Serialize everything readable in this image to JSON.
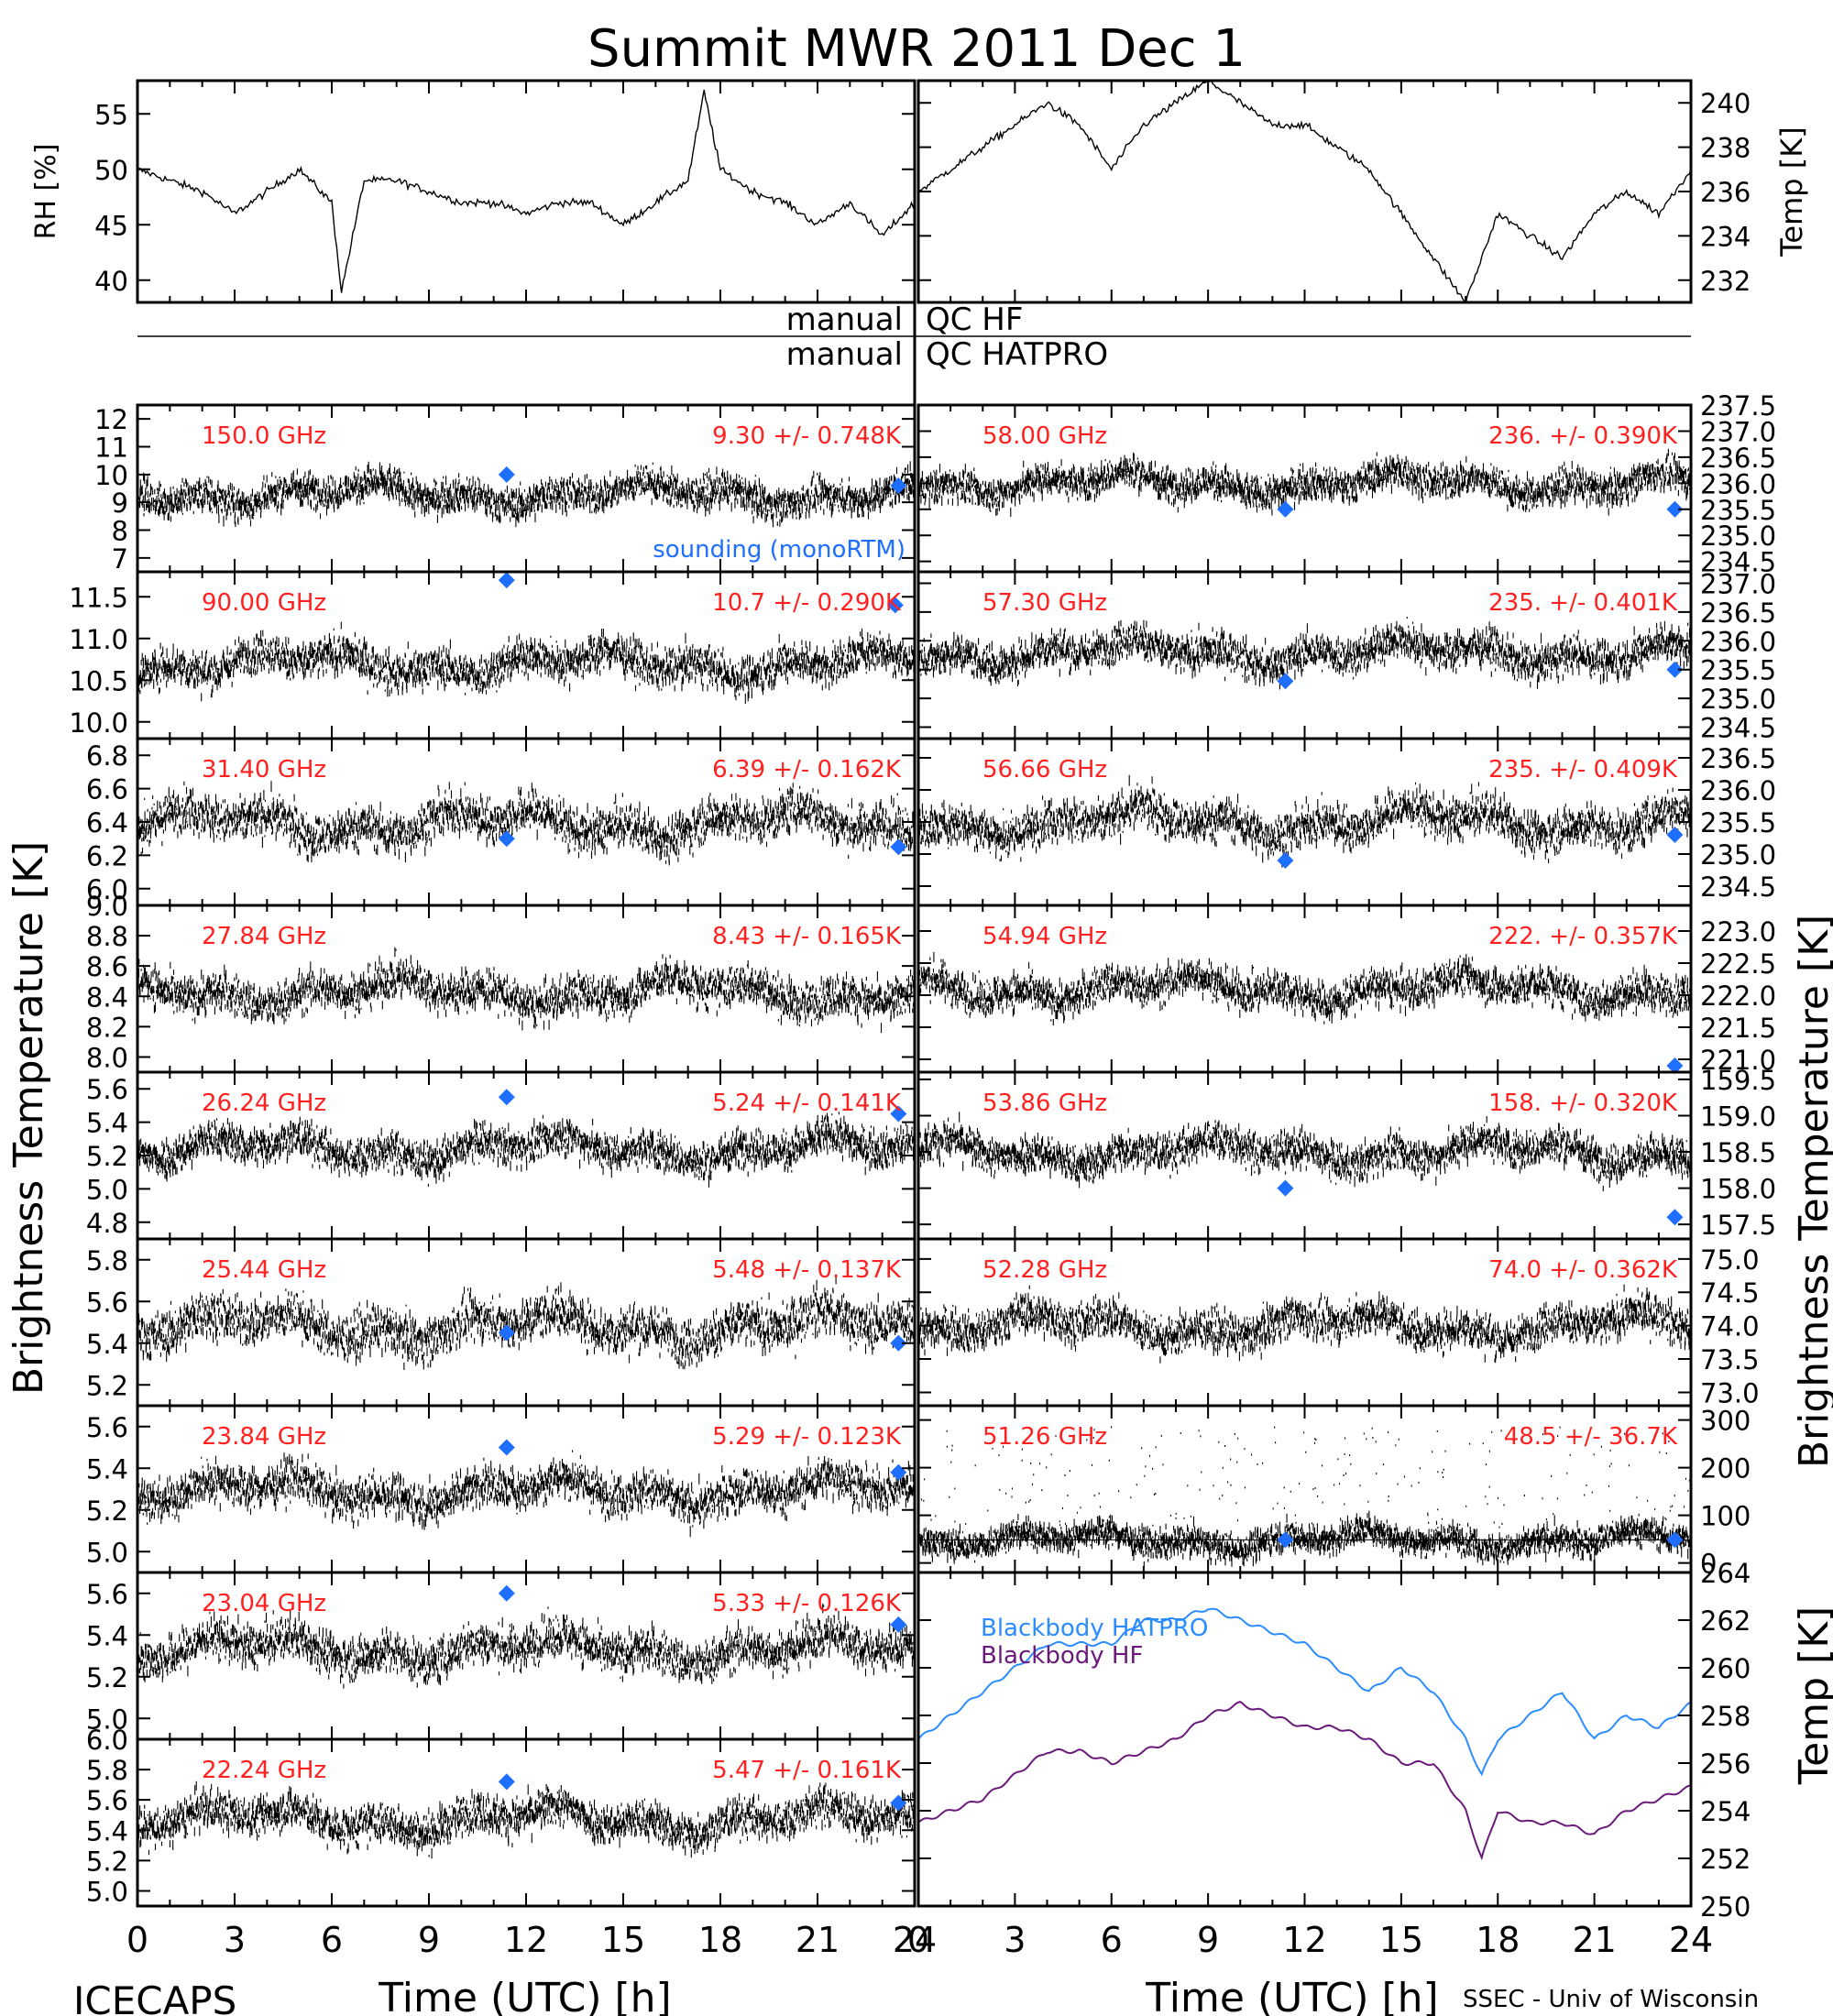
{
  "title": "Summit MWR 2011 Dec  1",
  "footer": {
    "left": "ICECAPS",
    "right": "SSEC - Univ of Wisconsin"
  },
  "qc": {
    "label_left": "manual",
    "label_hf": "QC HF",
    "label_hatpro": "QC HATPRO"
  },
  "axis": {
    "x_label": "Time (UTC) [h]",
    "x_ticks": [
      "0",
      "3",
      "6",
      "9",
      "12",
      "15",
      "18",
      "21",
      "24"
    ],
    "left_ylabel": "Brightness Temperature [K]",
    "right_ylabel": "Brightness Temperature [K]",
    "rh_ylabel": "RH [%]",
    "temp_ylabel": "Temp [K]"
  },
  "colors": {
    "trace": "#000000",
    "annotation": "#ff2020",
    "sounding": "#1e6eff",
    "bb_hatpro": "#2b8cff",
    "bb_hf": "#6a1a7a"
  },
  "chart_data": [
    {
      "type": "line",
      "id": "rh",
      "ylabel": "RH [%]",
      "xlim": [
        0,
        24
      ],
      "ylim": [
        38,
        58
      ],
      "yticks": [
        40,
        45,
        50,
        55
      ],
      "x": [
        0,
        1,
        2,
        3,
        4,
        5,
        6,
        6.3,
        7,
        8,
        9,
        10,
        11,
        12,
        13,
        14,
        15,
        16,
        17,
        17.5,
        18,
        19,
        20,
        21,
        22,
        23,
        24
      ],
      "values": [
        50,
        49,
        48,
        46,
        48,
        50,
        47,
        39,
        49,
        49,
        48,
        47,
        47,
        46,
        47,
        47,
        45,
        47,
        49,
        57,
        50,
        48,
        47,
        45,
        47,
        44,
        47
      ]
    },
    {
      "type": "line",
      "id": "temp",
      "ylabel": "Temp [K]",
      "xlim": [
        0,
        24
      ],
      "ylim": [
        231,
        241
      ],
      "yticks": [
        232,
        234,
        236,
        238,
        240
      ],
      "x": [
        0,
        1,
        2,
        3,
        4,
        5,
        6,
        7,
        8,
        9,
        10,
        11,
        12,
        13,
        14,
        15,
        16,
        17,
        18,
        19,
        20,
        21,
        22,
        23,
        24
      ],
      "values": [
        236,
        237,
        238,
        239,
        240,
        239,
        237,
        239,
        240,
        241,
        240,
        239,
        239,
        238,
        237,
        235,
        233,
        231,
        235,
        234,
        233,
        235,
        236,
        235,
        237
      ]
    },
    {
      "type": "scatter",
      "id": "ch150",
      "label": "150.0 GHz",
      "stat": "9.30 +/- 0.748K",
      "xlim": [
        0,
        24
      ],
      "ylim": [
        6.5,
        12.5
      ],
      "yticks": [
        7,
        8,
        9,
        10,
        11,
        12
      ],
      "mean": 9.3,
      "sd": 0.748,
      "sounding": [
        [
          11.4,
          10.0
        ],
        [
          23.5,
          9.6
        ]
      ],
      "sounding_label": "sounding (monoRTM)"
    },
    {
      "type": "scatter",
      "id": "ch90",
      "label": "90.00 GHz",
      "stat": "10.7 +/- 0.290K",
      "xlim": [
        0,
        24
      ],
      "ylim": [
        9.8,
        11.8
      ],
      "yticks": [
        10.0,
        10.5,
        11.0,
        11.5
      ],
      "mean": 10.7,
      "sd": 0.29,
      "sounding": [
        [
          11.4,
          11.7
        ],
        [
          23.4,
          11.4
        ]
      ]
    },
    {
      "type": "scatter",
      "id": "ch31",
      "label": "31.40 GHz",
      "stat": "6.39 +/- 0.162K",
      "xlim": [
        0,
        24
      ],
      "ylim": [
        5.9,
        6.9
      ],
      "yticks": [
        6.0,
        6.2,
        6.4,
        6.6,
        6.8
      ],
      "mean": 6.39,
      "sd": 0.162,
      "sounding": [
        [
          11.4,
          6.3
        ],
        [
          23.5,
          6.25
        ]
      ]
    },
    {
      "type": "scatter",
      "id": "ch27",
      "label": "27.84 GHz",
      "stat": "8.43 +/- 0.165K",
      "xlim": [
        0,
        24
      ],
      "ylim": [
        7.9,
        9.0
      ],
      "yticks": [
        8.0,
        8.2,
        8.4,
        8.6,
        8.8,
        9.0
      ],
      "mean": 8.43,
      "sd": 0.165,
      "sounding": []
    },
    {
      "type": "scatter",
      "id": "ch26",
      "label": "26.24 GHz",
      "stat": "5.24 +/- 0.141K",
      "xlim": [
        0,
        24
      ],
      "ylim": [
        4.7,
        5.7
      ],
      "yticks": [
        4.8,
        5.0,
        5.2,
        5.4,
        5.6
      ],
      "mean": 5.24,
      "sd": 0.141,
      "sounding": [
        [
          11.4,
          5.55
        ],
        [
          23.5,
          5.45
        ]
      ]
    },
    {
      "type": "scatter",
      "id": "ch25",
      "label": "25.44 GHz",
      "stat": "5.48 +/- 0.137K",
      "xlim": [
        0,
        24
      ],
      "ylim": [
        5.1,
        5.9
      ],
      "yticks": [
        5.2,
        5.4,
        5.6,
        5.8
      ],
      "mean": 5.48,
      "sd": 0.137,
      "sounding": [
        [
          11.4,
          5.45
        ],
        [
          23.5,
          5.4
        ]
      ]
    },
    {
      "type": "scatter",
      "id": "ch23",
      "label": "23.84 GHz",
      "stat": "5.29 +/- 0.123K",
      "xlim": [
        0,
        24
      ],
      "ylim": [
        4.9,
        5.7
      ],
      "yticks": [
        5.0,
        5.2,
        5.4,
        5.6
      ],
      "mean": 5.29,
      "sd": 0.123,
      "sounding": [
        [
          11.4,
          5.5
        ],
        [
          23.5,
          5.38
        ]
      ]
    },
    {
      "type": "scatter",
      "id": "ch23b",
      "label": "23.04 GHz",
      "stat": "5.33 +/- 0.126K",
      "xlim": [
        0,
        24
      ],
      "ylim": [
        4.9,
        5.7
      ],
      "yticks": [
        5.0,
        5.2,
        5.4,
        5.6
      ],
      "mean": 5.33,
      "sd": 0.126,
      "sounding": [
        [
          11.4,
          5.6
        ],
        [
          23.5,
          5.45
        ]
      ]
    },
    {
      "type": "scatter",
      "id": "ch22",
      "label": "22.24 GHz",
      "stat": "5.47 +/- 0.161K",
      "xlim": [
        0,
        24
      ],
      "ylim": [
        4.9,
        6.0
      ],
      "yticks": [
        5.0,
        5.2,
        5.4,
        5.6,
        5.8,
        6.0
      ],
      "mean": 5.47,
      "sd": 0.161,
      "sounding": [
        [
          11.4,
          5.72
        ],
        [
          23.5,
          5.58
        ]
      ]
    },
    {
      "type": "scatter",
      "id": "ch58",
      "label": "58.00 GHz",
      "stat": "236. +/- 0.390K",
      "xlim": [
        0,
        24
      ],
      "ylim": [
        234.3,
        237.5
      ],
      "yticks": [
        234.5,
        235.0,
        235.5,
        236.0,
        236.5,
        237.0,
        237.5
      ],
      "mean": 236.0,
      "sd": 0.39,
      "sounding": [
        [
          11.4,
          235.5
        ],
        [
          23.5,
          235.5
        ]
      ]
    },
    {
      "type": "scatter",
      "id": "ch57",
      "label": "57.30 GHz",
      "stat": "235. +/- 0.401K",
      "xlim": [
        0,
        24
      ],
      "ylim": [
        234.3,
        237.2
      ],
      "yticks": [
        234.5,
        235.0,
        235.5,
        236.0,
        236.5,
        237.0
      ],
      "mean": 235.8,
      "sd": 0.401,
      "sounding": [
        [
          11.4,
          235.3
        ],
        [
          23.5,
          235.5
        ]
      ]
    },
    {
      "type": "scatter",
      "id": "ch56",
      "label": "56.66 GHz",
      "stat": "235. +/- 0.409K",
      "xlim": [
        0,
        24
      ],
      "ylim": [
        234.2,
        236.8
      ],
      "yticks": [
        234.5,
        235.0,
        235.5,
        236.0,
        236.5
      ],
      "mean": 235.5,
      "sd": 0.409,
      "sounding": [
        [
          11.4,
          234.9
        ],
        [
          23.5,
          235.3
        ]
      ]
    },
    {
      "type": "scatter",
      "id": "ch54",
      "label": "54.94 GHz",
      "stat": "222. +/- 0.357K",
      "xlim": [
        0,
        24
      ],
      "ylim": [
        220.8,
        223.4
      ],
      "yticks": [
        221.0,
        221.5,
        222.0,
        222.5,
        223.0
      ],
      "mean": 222.1,
      "sd": 0.357,
      "sounding": [
        [
          23.5,
          220.9
        ]
      ]
    },
    {
      "type": "scatter",
      "id": "ch53",
      "label": "53.86 GHz",
      "stat": "158. +/- 0.320K",
      "xlim": [
        0,
        24
      ],
      "ylim": [
        157.3,
        159.6
      ],
      "yticks": [
        157.5,
        158.0,
        158.5,
        159.0,
        159.5
      ],
      "mean": 158.5,
      "sd": 0.32,
      "sounding": [
        [
          11.4,
          158.0
        ],
        [
          23.5,
          157.6
        ]
      ]
    },
    {
      "type": "scatter",
      "id": "ch52",
      "label": "52.28 GHz",
      "stat": "74.0 +/- 0.362K",
      "xlim": [
        0,
        24
      ],
      "ylim": [
        72.8,
        75.3
      ],
      "yticks": [
        73.0,
        73.5,
        74.0,
        74.5,
        75.0
      ],
      "mean": 74.0,
      "sd": 0.362,
      "sounding": []
    },
    {
      "type": "scatter",
      "id": "ch51",
      "label": "51.26 GHz",
      "stat": "48.5 +/- 36.7K",
      "xlim": [
        0,
        24
      ],
      "ylim": [
        -20,
        330
      ],
      "yticks": [
        0,
        100,
        200,
        300
      ],
      "mean": 48.5,
      "sd": 36.7,
      "sounding": [
        [
          11.4,
          48.5
        ],
        [
          23.5,
          48.5
        ]
      ]
    },
    {
      "type": "line",
      "id": "blackbody",
      "ylabel": "Temp [K]",
      "xlim": [
        0,
        24
      ],
      "ylim": [
        250,
        264
      ],
      "yticks": [
        250,
        252,
        254,
        256,
        258,
        260,
        262,
        264
      ],
      "x": [
        0,
        1,
        2,
        3,
        4,
        5,
        6,
        7,
        8,
        9,
        10,
        11,
        12,
        13,
        14,
        15,
        16,
        17,
        17.5,
        18,
        19,
        20,
        21,
        22,
        23,
        24
      ],
      "series": [
        {
          "name": "Blackbody HATPRO",
          "values": [
            257,
            258,
            259,
            260,
            261,
            261,
            261,
            262,
            262,
            262.5,
            262,
            261.5,
            261,
            260,
            259,
            260,
            259,
            257,
            255.5,
            257,
            258,
            259,
            257,
            258,
            257.5,
            258.5
          ]
        },
        {
          "name": "Blackbody HF",
          "values": [
            253.5,
            254,
            254.5,
            255.5,
            256.5,
            256.5,
            256,
            256.5,
            257,
            258,
            258.5,
            258,
            257.5,
            257.5,
            257,
            256,
            256,
            254,
            252,
            254,
            253.5,
            253.5,
            253,
            254,
            254.5,
            255
          ]
        }
      ]
    }
  ]
}
